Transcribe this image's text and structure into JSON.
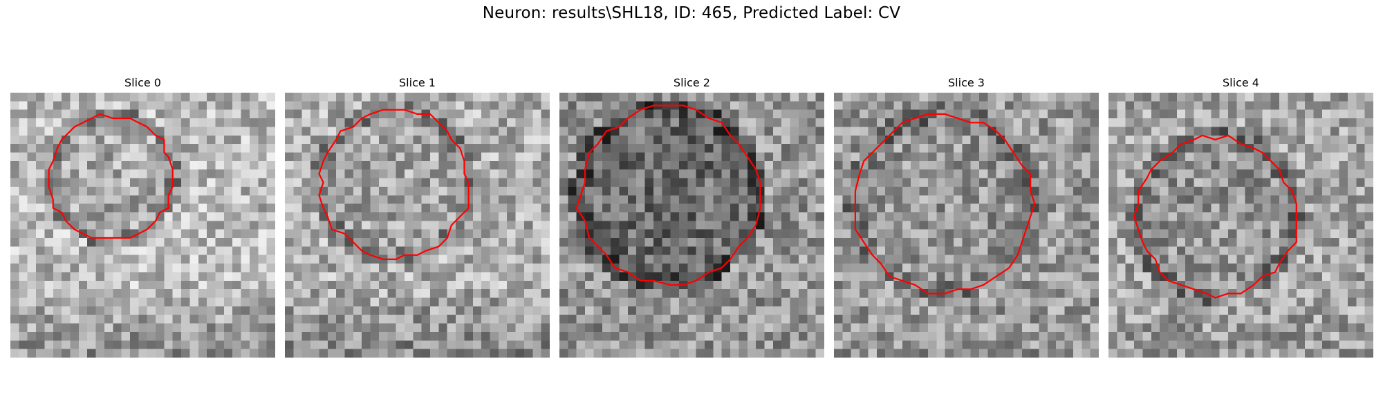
{
  "figure": {
    "title": "Neuron: results\\SHL18, ID: 465, Predicted Label: CV"
  },
  "panels": [
    {
      "title": "Slice 0"
    },
    {
      "title": "Slice 1"
    },
    {
      "title": "Slice 2"
    },
    {
      "title": "Slice 3"
    },
    {
      "title": "Slice 4"
    }
  ],
  "colors": {
    "contour": "#ff0000",
    "background": "#ffffff"
  },
  "image": {
    "colormap": "grayscale",
    "grid": "31x31 pixel crop"
  }
}
